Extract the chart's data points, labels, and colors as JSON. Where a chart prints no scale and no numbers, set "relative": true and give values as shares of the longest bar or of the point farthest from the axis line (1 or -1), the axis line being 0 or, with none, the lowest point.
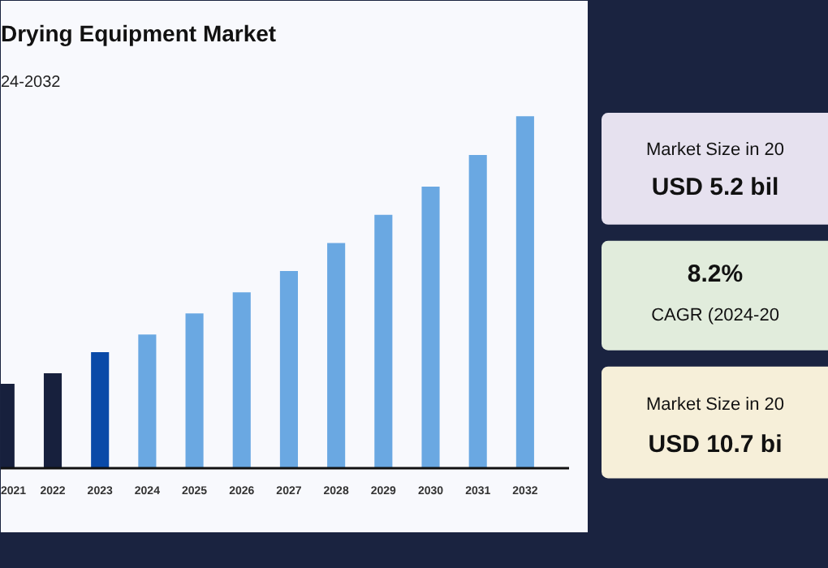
{
  "chart_data": [
    {
      "type": "bar",
      "title": "Drying Equipment Market",
      "subtitle": "24-2032",
      "relative": true,
      "categories": [
        "2021",
        "2022",
        "2023",
        "2024",
        "2025",
        "2026",
        "2027",
        "2028",
        "2029",
        "2030",
        "2031",
        "2032"
      ],
      "values": [
        0.24,
        0.27,
        0.33,
        0.38,
        0.44,
        0.5,
        0.56,
        0.64,
        0.72,
        0.8,
        0.89,
        1
      ],
      "colors": [
        "#17203d",
        "#17203d",
        "#0a4aa8",
        "#6aa8e2",
        "#6aa8e2",
        "#6aa8e2",
        "#6aa8e2",
        "#6aa8e2",
        "#6aa8e2",
        "#6aa8e2",
        "#6aa8e2",
        "#6aa8e2"
      ],
      "grid": false
    },
    {
      "type": "other",
      "annotations": [
        "Market Size in 20",
        "USD 5.2 bil",
        "8.2%",
        "CAGR (2024-20",
        "Market Size in 20",
        "USD 10.7 bi"
      ]
    }
  ]
}
